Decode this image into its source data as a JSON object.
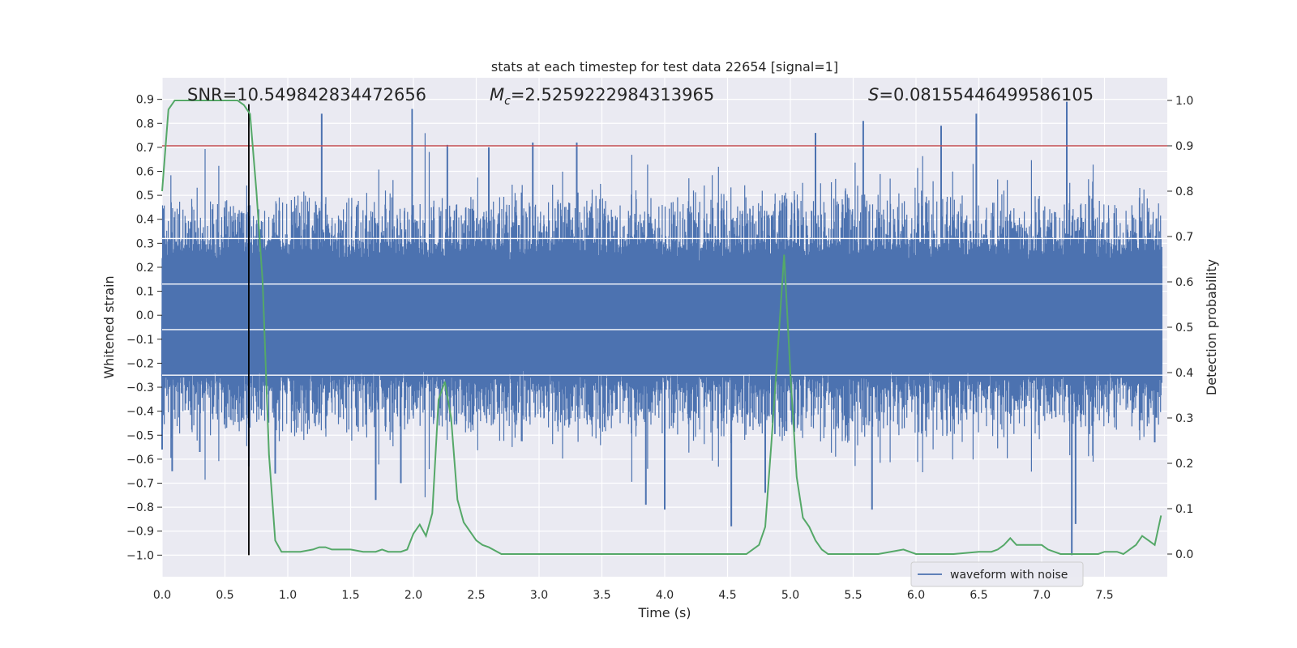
{
  "chart_data": {
    "type": "line",
    "title": "stats at each timestep for test data 22654 [signal=1]",
    "xlabel": "Time (s)",
    "ylabel_left": "Whitened strain",
    "ylabel_right": "Detection probability",
    "xlim": [
      0.0,
      8.0
    ],
    "ylim_left": [
      -1.09,
      0.99
    ],
    "ylim_right": [
      -0.05,
      1.05
    ],
    "x_ticks": [
      "0.0",
      "0.5",
      "1.0",
      "1.5",
      "2.0",
      "2.5",
      "3.0",
      "3.5",
      "4.0",
      "4.5",
      "5.0",
      "5.5",
      "6.0",
      "6.5",
      "7.0",
      "7.5"
    ],
    "y_left_ticks": [
      "0.9",
      "0.8",
      "0.7",
      "0.6",
      "0.5",
      "0.4",
      "0.3",
      "0.2",
      "0.1",
      "0.0",
      "−0.1",
      "−0.2",
      "−0.3",
      "−0.4",
      "−0.5",
      "−0.6",
      "−0.7",
      "−0.8",
      "−0.9",
      "−1.0"
    ],
    "y_right_ticks": [
      "1.0",
      "0.9",
      "0.8",
      "0.7",
      "0.6",
      "0.5",
      "0.4",
      "0.3",
      "0.2",
      "0.1",
      "0.0"
    ],
    "grid": true,
    "legend_position": "bottom-right",
    "annotations": {
      "snr": "SNR=10.549842834472656",
      "mc_prefix": "M",
      "mc_sub": "c",
      "mc_value": "=2.5259222984313965",
      "s_prefix": "S",
      "s_value": "=0.08155446499586105"
    },
    "threshold": {
      "value": 0.9,
      "axis": "right",
      "color": "#c44e52"
    },
    "marker_line": {
      "x": 0.69,
      "color": "#000000"
    },
    "series": [
      {
        "name": "waveform with noise",
        "axis": "left",
        "color": "#4c72b0",
        "representation": "dense noise",
        "core_amplitude": 0.35,
        "spikes": [
          {
            "x": 0.0,
            "y": -0.56
          },
          {
            "x": 0.08,
            "y": -0.65
          },
          {
            "x": 0.3,
            "y": -0.57
          },
          {
            "x": 0.69,
            "y": -0.63
          },
          {
            "x": 0.9,
            "y": -0.66
          },
          {
            "x": 1.27,
            "y": 0.84
          },
          {
            "x": 1.7,
            "y": -0.77
          },
          {
            "x": 1.9,
            "y": -0.7
          },
          {
            "x": 1.99,
            "y": 0.86
          },
          {
            "x": 2.27,
            "y": 0.71
          },
          {
            "x": 2.6,
            "y": 0.7
          },
          {
            "x": 2.95,
            "y": 0.72
          },
          {
            "x": 3.3,
            "y": 0.72
          },
          {
            "x": 3.85,
            "y": -0.79
          },
          {
            "x": 4.0,
            "y": -0.81
          },
          {
            "x": 4.53,
            "y": -0.88
          },
          {
            "x": 4.8,
            "y": -0.74
          },
          {
            "x": 5.2,
            "y": 0.76
          },
          {
            "x": 5.58,
            "y": 0.81
          },
          {
            "x": 5.65,
            "y": -0.81
          },
          {
            "x": 6.2,
            "y": 0.79
          },
          {
            "x": 6.48,
            "y": 0.84
          },
          {
            "x": 7.2,
            "y": 0.89
          },
          {
            "x": 7.24,
            "y": -1.0
          },
          {
            "x": 7.27,
            "y": -0.87
          },
          {
            "x": 7.9,
            "y": -0.53
          }
        ]
      },
      {
        "name": "",
        "axis": "right",
        "color": "#55a868",
        "x": [
          0.0,
          0.05,
          0.1,
          0.15,
          0.2,
          0.3,
          0.4,
          0.5,
          0.6,
          0.65,
          0.7,
          0.75,
          0.8,
          0.85,
          0.9,
          0.95,
          1.0,
          1.1,
          1.2,
          1.25,
          1.3,
          1.35,
          1.4,
          1.5,
          1.6,
          1.7,
          1.75,
          1.8,
          1.9,
          1.95,
          2.0,
          2.05,
          2.1,
          2.15,
          2.2,
          2.25,
          2.3,
          2.35,
          2.4,
          2.5,
          2.55,
          2.6,
          2.7,
          2.8,
          3.0,
          3.2,
          3.4,
          3.6,
          3.7,
          3.8,
          3.85,
          3.9,
          4.0,
          4.2,
          4.4,
          4.5,
          4.6,
          4.65,
          4.7,
          4.75,
          4.8,
          4.85,
          4.9,
          4.95,
          5.0,
          5.05,
          5.1,
          5.15,
          5.2,
          5.25,
          5.3,
          5.5,
          5.7,
          5.9,
          6.0,
          6.1,
          6.3,
          6.5,
          6.6,
          6.65,
          6.7,
          6.75,
          6.8,
          6.9,
          7.0,
          7.05,
          7.1,
          7.15,
          7.2,
          7.3,
          7.4,
          7.45,
          7.5,
          7.55,
          7.6,
          7.65,
          7.7,
          7.75,
          7.8,
          7.85,
          7.9,
          7.95
        ],
        "y": [
          0.8,
          0.98,
          1.0,
          1.0,
          1.0,
          1.0,
          1.0,
          1.0,
          1.0,
          0.99,
          0.97,
          0.8,
          0.6,
          0.22,
          0.03,
          0.005,
          0.005,
          0.005,
          0.01,
          0.015,
          0.015,
          0.01,
          0.01,
          0.01,
          0.005,
          0.005,
          0.01,
          0.005,
          0.005,
          0.01,
          0.045,
          0.065,
          0.04,
          0.09,
          0.34,
          0.38,
          0.3,
          0.12,
          0.07,
          0.03,
          0.02,
          0.015,
          0.0,
          0.0,
          0.0,
          0.0,
          0.0,
          0.0,
          0.0,
          0.0,
          0.0,
          0.0,
          0.0,
          0.0,
          0.0,
          0.0,
          0.0,
          0.0,
          0.01,
          0.02,
          0.06,
          0.25,
          0.45,
          0.66,
          0.4,
          0.17,
          0.08,
          0.06,
          0.03,
          0.01,
          0.0,
          0.0,
          0.0,
          0.01,
          0.0,
          0.0,
          0.0,
          0.005,
          0.005,
          0.01,
          0.02,
          0.035,
          0.02,
          0.02,
          0.02,
          0.01,
          0.005,
          0.0,
          0.0,
          0.0,
          0.0,
          0.0,
          0.005,
          0.005,
          0.005,
          0.0,
          0.01,
          0.02,
          0.04,
          0.03,
          0.02,
          0.085
        ]
      }
    ]
  }
}
